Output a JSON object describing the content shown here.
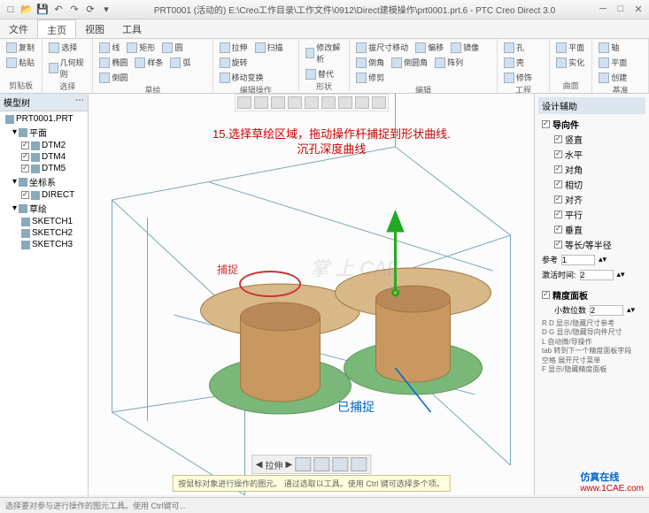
{
  "window": {
    "title": "PRT0001 (活动的) E:\\Creo工作目录\\工作文件\\0912\\Direct建模操作\\prt0001.prt.6 - PTC Creo Direct 3.0"
  },
  "qat_icons": [
    "new",
    "open",
    "save",
    "undo",
    "redo",
    "regen",
    "dropdown",
    "expand"
  ],
  "window_buttons": [
    "min",
    "max",
    "close"
  ],
  "menu_tabs": [
    {
      "label": "文件",
      "active": false
    },
    {
      "label": "主页",
      "active": true
    },
    {
      "label": "视图",
      "active": false
    },
    {
      "label": "工具",
      "active": false
    }
  ],
  "ribbon_groups": [
    {
      "label": "剪贴板",
      "items": [
        {
          "t": "复制"
        },
        {
          "t": "粘贴"
        }
      ]
    },
    {
      "label": "选择",
      "items": [
        {
          "t": "选择"
        },
        {
          "t": "几何规则"
        }
      ]
    },
    {
      "label": "草绘",
      "items": [
        {
          "t": "线"
        },
        {
          "t": "矩形"
        },
        {
          "t": "圆"
        },
        {
          "t": "椭圆"
        },
        {
          "t": "样条"
        },
        {
          "t": "弧"
        },
        {
          "t": "倒圆"
        }
      ]
    },
    {
      "label": "编辑操作",
      "items": [
        {
          "t": "拉伸"
        },
        {
          "t": "扫描"
        },
        {
          "t": "旋转"
        },
        {
          "t": "移动变换"
        }
      ]
    },
    {
      "label": "形状",
      "items": [
        {
          "t": "修改解析"
        },
        {
          "t": "替代"
        }
      ]
    },
    {
      "label": "编辑",
      "items": [
        {
          "t": "拔尺寸移动"
        },
        {
          "t": "偏移"
        },
        {
          "t": "镜像"
        },
        {
          "t": "倒角"
        },
        {
          "t": "倒圆角"
        },
        {
          "t": "阵列"
        },
        {
          "t": "修剪"
        }
      ]
    },
    {
      "label": "工程",
      "items": [
        {
          "t": "孔"
        },
        {
          "t": "壳"
        },
        {
          "t": "修饰"
        }
      ]
    },
    {
      "label": "曲面",
      "items": [
        {
          "t": "平面"
        },
        {
          "t": "实化"
        }
      ]
    },
    {
      "label": "基准",
      "items": [
        {
          "t": "轴"
        },
        {
          "t": "平面"
        },
        {
          "t": "创建"
        }
      ]
    }
  ],
  "tree": {
    "header": "模型树",
    "root": "PRT0001.PRT",
    "nodes": [
      {
        "label": "平面",
        "open": true,
        "children": [
          {
            "label": "DTM2",
            "chk": true
          },
          {
            "label": "DTM4",
            "chk": true
          },
          {
            "label": "DTM5",
            "chk": true
          }
        ]
      },
      {
        "label": "坐标系",
        "open": true,
        "children": [
          {
            "label": "DIRECT",
            "chk": true
          }
        ]
      },
      {
        "label": "草绘",
        "open": true,
        "children": [
          {
            "label": "SKETCH1"
          },
          {
            "label": "SKETCH2"
          },
          {
            "label": "SKETCH3"
          }
        ]
      }
    ]
  },
  "viewport": {
    "toolbar_icons": [
      "refit",
      "zoom-in",
      "zoom-out",
      "pan",
      "spin",
      "view",
      "saved",
      "layers",
      "style"
    ],
    "annotation_line1": "15.选择草绘区域，拖动操作杆捕捉到形状曲线.",
    "annotation_line2": "沉孔深度曲线",
    "capture_label": "捕捉",
    "captured_label": "已捕捉",
    "bottom_toolbar": {
      "mode": "拉伸",
      "arrow_l": "◀",
      "arrow_r": "▶"
    },
    "tip_text": "按鼠标对象进行操作的图元。 通过选取以工具。使用 Ctrl 键可选择多个项。",
    "watermark_center": "掌 上 CAE"
  },
  "side_panel": {
    "header": "设计辅助",
    "guides_label": "导向件",
    "guides": [
      {
        "label": "竖直",
        "on": true
      },
      {
        "label": "水平",
        "on": true
      },
      {
        "label": "对角",
        "on": true
      },
      {
        "label": "相切",
        "on": true
      },
      {
        "label": "对齐",
        "on": true
      },
      {
        "label": "平行",
        "on": true
      },
      {
        "label": "垂直",
        "on": true
      },
      {
        "label": "等长/等半径",
        "on": true
      }
    ],
    "ref_label": "参考",
    "ref_val": "1",
    "delay_label": "激活时间:",
    "delay_val": "2",
    "precision_label": "精度面板",
    "decimals_label": "小数位数",
    "decimals_val": "2",
    "notes": [
      "R D 显示/隐藏尺寸参考",
      "D G 显示/隐藏导向件尺寸",
      "L   自动微/导操作",
      "tab 转到下一个精度面板字段",
      "空格 展开尺寸菜单",
      "F   显示/隐藏精度面板"
    ]
  },
  "statusbar": "选择要对参与进行操作的图元工具。使用 Ctrl键可...",
  "watermark": {
    "cn": "仿真在线",
    "url": "www.1CAE.com"
  },
  "colors": {
    "brown": "#c89860",
    "brown_dark": "#a07840",
    "green": "#7ab87a",
    "green_dark": "#5a985a",
    "wire": "#78a8b8",
    "axis_green": "#2a2",
    "red": "#c33",
    "blue": "#06c",
    "bg": "#fcfcfc"
  }
}
